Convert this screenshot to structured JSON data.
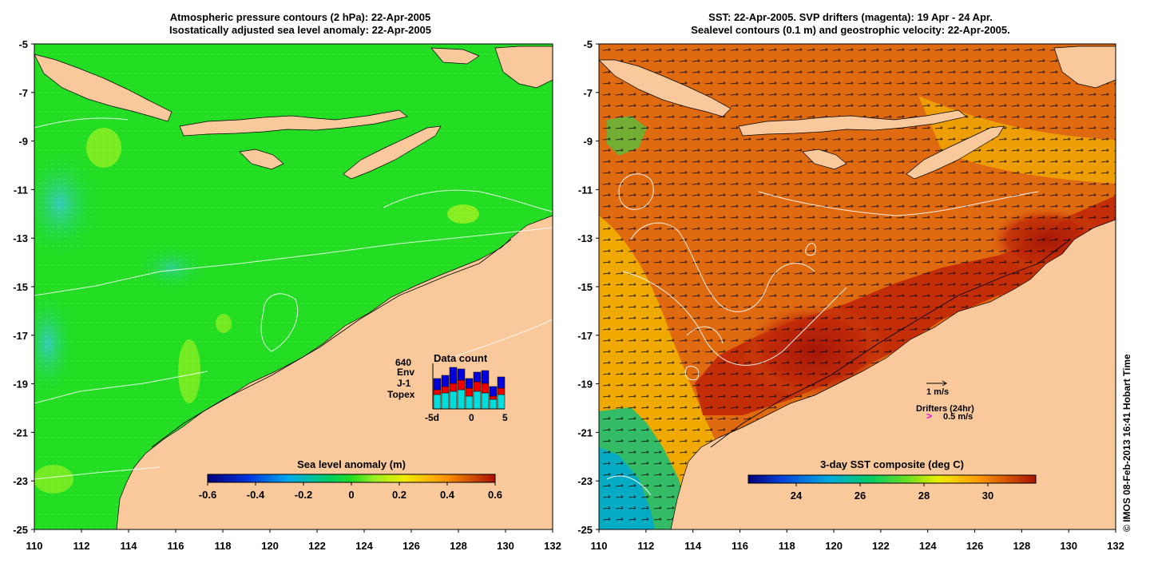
{
  "left_panel": {
    "title_line1": "Atmospheric pressure contours (2 hPa): 22-Apr-2005",
    "title_line2": "Isostatically adjusted sea level anomaly: 22-Apr-2005",
    "colorbar": {
      "label": "Sea level anomaly (m)",
      "ticks": [
        "-0.6",
        "-0.4",
        "-0.2",
        "0",
        "0.2",
        "0.4",
        "0.6"
      ],
      "range": [
        -0.6,
        0.6
      ]
    },
    "inset": {
      "title": "Data count",
      "max_count": "640",
      "legend": [
        {
          "label": "Env",
          "color": "#0000dd"
        },
        {
          "label": "J-1",
          "color": "#ee0000"
        },
        {
          "label": "Topex",
          "color": "#00dddd"
        }
      ],
      "x_ticks": [
        "-5d",
        "0",
        "5"
      ]
    }
  },
  "right_panel": {
    "title_line1": "SST: 22-Apr-2005. SVP drifters (magenta): 19 Apr - 24 Apr.",
    "title_line2": "Sealevel contours (0.1 m) and geostrophic velocity: 22-Apr-2005.",
    "colorbar": {
      "label": "3-day SST composite (deg C)",
      "ticks": [
        "24",
        "26",
        "28",
        "30"
      ],
      "range": [
        22.5,
        31.5
      ]
    },
    "velocity_key": "1 m/s",
    "drifters_label": "Drifters (24hr)",
    "drifters_speed": "0.5 m/s",
    "drifters_symbol": ">"
  },
  "axes": {
    "lon_ticks": [
      "110",
      "112",
      "114",
      "116",
      "118",
      "120",
      "122",
      "124",
      "126",
      "128",
      "130",
      "132"
    ],
    "lat_ticks": [
      "-5",
      "-7",
      "-9",
      "-11",
      "-13",
      "-15",
      "-17",
      "-19",
      "-21",
      "-23",
      "-25"
    ],
    "lon_range": [
      110,
      132
    ],
    "lat_range": [
      -25,
      -5
    ]
  },
  "credit": "© IMOS 08-Feb-2013 16:41 Hobart Time",
  "colors": {
    "land": "#f9c99b",
    "sea_green": "#22dd22",
    "sst_orange": "#e06a10",
    "sst_dark": "#b01d08"
  }
}
